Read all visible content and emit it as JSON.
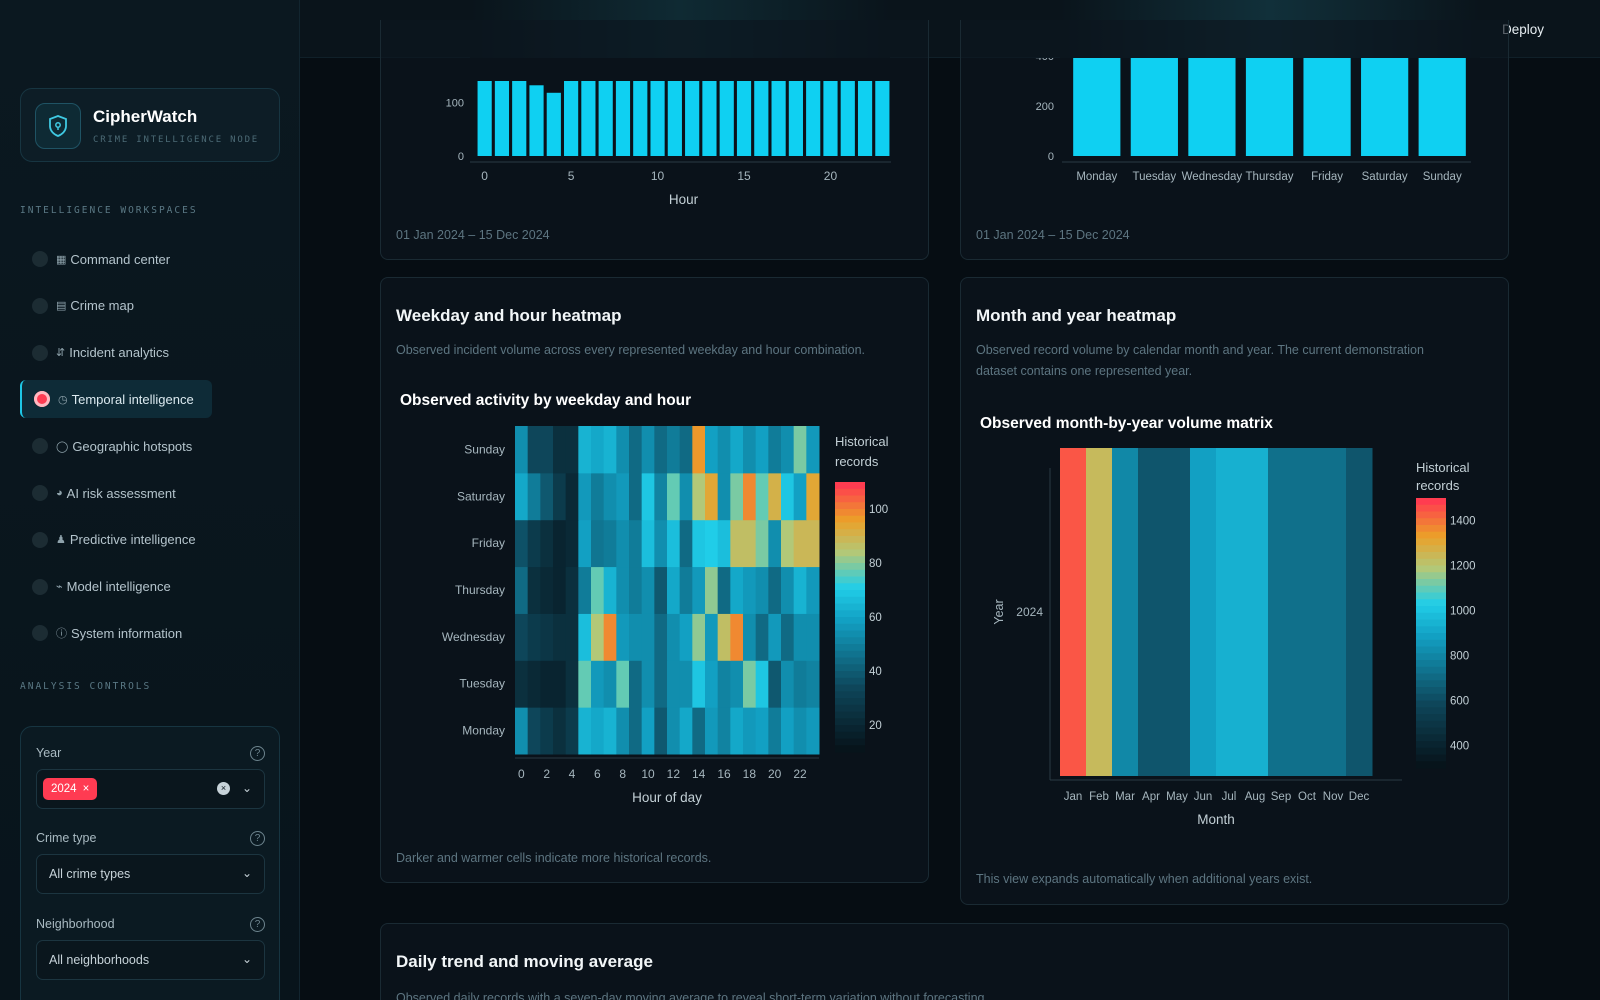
{
  "app": {
    "title": "CipherWatch",
    "subtitle": "CRIME INTELLIGENCE NODE"
  },
  "topbar": {
    "deploy_label": "Deploy"
  },
  "sidebar": {
    "workspaces_label": "INTELLIGENCE WORKSPACES",
    "items": [
      {
        "glyph": "▦",
        "label": "Command center"
      },
      {
        "glyph": "▤",
        "label": "Crime map"
      },
      {
        "glyph": "⇵",
        "label": "Incident analytics"
      },
      {
        "glyph": "◷",
        "label": "Temporal intelligence",
        "active": true
      },
      {
        "glyph": "◯",
        "label": "Geographic hotspots"
      },
      {
        "glyph": "◕",
        "label": "AI risk assessment"
      },
      {
        "glyph": "♟",
        "label": "Predictive intelligence"
      },
      {
        "glyph": "⌁",
        "label": "Model intelligence"
      },
      {
        "glyph": "ⓘ",
        "label": "System information"
      }
    ],
    "controls_label": "ANALYSIS CONTROLS",
    "controls": {
      "year": {
        "label": "Year",
        "selected_tag": "2024",
        "tag_remove": "×"
      },
      "crime_type": {
        "label": "Crime type",
        "value": "All crime types"
      },
      "neighborhood": {
        "label": "Neighborhood",
        "value": "All neighborhoods"
      }
    }
  },
  "hour_card": {
    "footer": "01 Jan 2024 – 15 Dec 2024"
  },
  "weekday_card": {
    "footer": "01 Jan 2024 – 15 Dec 2024"
  },
  "heatmap_card": {
    "title": "Weekday and hour heatmap",
    "description": "Observed incident volume across every represented weekday and hour combination.",
    "chart_title": "Observed activity by weekday and hour",
    "footer": "Darker and warmer cells indicate more historical records."
  },
  "month_card": {
    "title": "Month and year heatmap",
    "description_line1": "Observed record volume by calendar month and year. The current demonstration",
    "description_line2": "dataset contains one represented year.",
    "chart_title": "Observed month-by-year volume matrix",
    "footer": "This view expands automatically when additional years exist."
  },
  "trend_card": {
    "title": "Daily trend and moving average",
    "description": "Observed daily records with a seven-day moving average to reveal short-term variation without forecasting."
  },
  "colors": {
    "accent": "#1ec7e6",
    "bar": "#0fd0f2",
    "alert": "#ff3b52",
    "gold": "#e3a52a"
  },
  "chart_data": [
    {
      "type": "bar",
      "xlabel": "Hour",
      "x": [
        0,
        1,
        2,
        3,
        4,
        5,
        6,
        7,
        8,
        9,
        10,
        11,
        12,
        13,
        14,
        15,
        16,
        17,
        18,
        19,
        20,
        21,
        22,
        23
      ],
      "values": [
        140,
        140,
        140,
        132,
        118,
        140,
        140,
        140,
        140,
        140,
        140,
        140,
        140,
        140,
        140,
        140,
        140,
        140,
        140,
        140,
        140,
        140,
        140,
        140
      ],
      "x_ticks": [
        0,
        5,
        10,
        15,
        20
      ],
      "y_ticks": [
        0,
        100
      ],
      "note": ""
    },
    {
      "type": "bar",
      "categories": [
        "Monday",
        "Tuesday",
        "Wednesday",
        "Thursday",
        "Friday",
        "Saturday",
        "Sunday"
      ],
      "values": [
        480,
        480,
        480,
        480,
        480,
        480,
        480
      ],
      "y_ticks": [
        0,
        200,
        400
      ]
    },
    {
      "type": "heatmap",
      "xlabel": "Hour of day",
      "x": [
        0,
        1,
        2,
        3,
        4,
        5,
        6,
        7,
        8,
        9,
        10,
        11,
        12,
        13,
        14,
        15,
        16,
        17,
        18,
        19,
        20,
        21,
        22,
        23
      ],
      "x_ticks": [
        0,
        2,
        4,
        6,
        8,
        10,
        12,
        14,
        16,
        18,
        20,
        22
      ],
      "y": [
        "Monday",
        "Tuesday",
        "Wednesday",
        "Thursday",
        "Friday",
        "Saturday",
        "Sunday"
      ],
      "colorbar_title": "Historical records",
      "colorbar_ticks": [
        20,
        40,
        60,
        80,
        100
      ],
      "zlim": [
        10,
        110
      ],
      "z": [
        [
          55,
          35,
          30,
          25,
          30,
          65,
          62,
          65,
          55,
          45,
          60,
          40,
          55,
          62,
          45,
          58,
          52,
          62,
          58,
          60,
          50,
          60,
          55,
          58
        ],
        [
          25,
          22,
          20,
          20,
          25,
          78,
          58,
          55,
          78,
          45,
          55,
          45,
          55,
          55,
          70,
          60,
          52,
          55,
          80,
          70,
          40,
          55,
          50,
          52
        ],
        [
          35,
          30,
          28,
          25,
          25,
          68,
          85,
          100,
          58,
          55,
          55,
          45,
          55,
          60,
          82,
          58,
          88,
          100,
          55,
          45,
          58,
          45,
          55,
          55
        ],
        [
          45,
          25,
          22,
          20,
          25,
          50,
          78,
          65,
          55,
          50,
          55,
          40,
          62,
          50,
          58,
          82,
          45,
          62,
          58,
          55,
          45,
          55,
          65,
          58
        ],
        [
          38,
          30,
          25,
          20,
          22,
          60,
          48,
          50,
          55,
          50,
          68,
          55,
          68,
          45,
          70,
          72,
          68,
          88,
          88,
          80,
          55,
          85,
          90,
          90
        ],
        [
          62,
          50,
          40,
          30,
          22,
          58,
          50,
          55,
          58,
          45,
          70,
          52,
          78,
          55,
          85,
          95,
          55,
          80,
          100,
          78,
          92,
          70,
          60,
          95
        ],
        [
          55,
          35,
          35,
          25,
          25,
          65,
          62,
          65,
          55,
          45,
          55,
          45,
          50,
          45,
          98,
          60,
          55,
          62,
          55,
          60,
          50,
          55,
          80,
          58
        ]
      ]
    },
    {
      "type": "heatmap",
      "xlabel": "Month",
      "ylabel": "Year",
      "x": [
        "Jan",
        "Feb",
        "Mar",
        "Apr",
        "May",
        "Jun",
        "Jul",
        "Aug",
        "Sep",
        "Oct",
        "Nov",
        "Dec"
      ],
      "y": [
        "2024"
      ],
      "colorbar_title": "Historical records",
      "colorbar_ticks": [
        400,
        600,
        800,
        1000,
        1200,
        1400
      ],
      "zlim": [
        300,
        1500
      ],
      "z": [
        [
          1460,
          1250,
          820,
          650,
          650,
          900,
          950,
          950,
          740,
          740,
          740,
          650
        ]
      ]
    }
  ]
}
